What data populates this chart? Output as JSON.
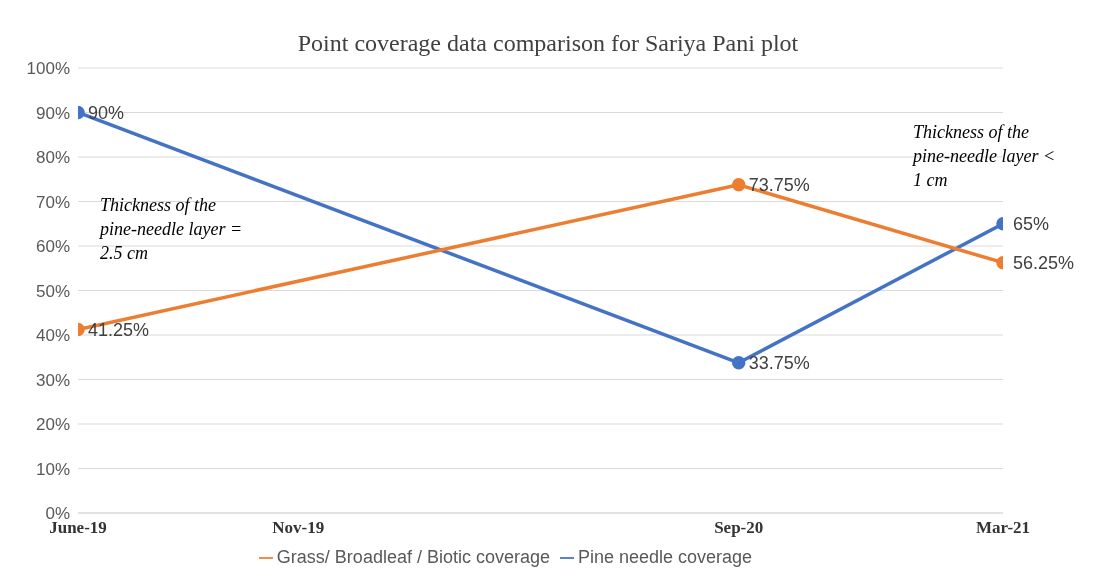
{
  "chart_data": {
    "type": "line",
    "title": "Point coverage data comparison for Sariya Pani plot",
    "x": [
      "2019-06",
      "2020-09",
      "2021-03"
    ],
    "xlim": [
      "2019-06",
      "2021-03"
    ],
    "xticks": [
      {
        "value": "2019-06",
        "label": "June-19"
      },
      {
        "value": "2019-11",
        "label": "Nov-19"
      },
      {
        "value": "2020-09",
        "label": "Sep-20"
      },
      {
        "value": "2021-03",
        "label": "Mar-21"
      }
    ],
    "ylim": [
      0,
      100
    ],
    "yticks": [
      {
        "value": 0,
        "label": "0%"
      },
      {
        "value": 10,
        "label": "10%"
      },
      {
        "value": 20,
        "label": "20%"
      },
      {
        "value": 30,
        "label": "30%"
      },
      {
        "value": 40,
        "label": "40%"
      },
      {
        "value": 50,
        "label": "50%"
      },
      {
        "value": 60,
        "label": "60%"
      },
      {
        "value": 70,
        "label": "70%"
      },
      {
        "value": 80,
        "label": "80%"
      },
      {
        "value": 90,
        "label": "90%"
      },
      {
        "value": 100,
        "label": "100%"
      }
    ],
    "series": [
      {
        "name": "Pine needle coverage",
        "color": "#4472c4",
        "values": [
          90,
          33.75,
          65
        ],
        "value_labels": [
          "90%",
          "33.75%",
          "65%"
        ]
      },
      {
        "name": "Grass/ Broadleaf / Biotic coverage",
        "color": "#ed7d31",
        "values": [
          41.25,
          73.75,
          56.25
        ],
        "value_labels": [
          "41.25%",
          "73.75%",
          "56.25%"
        ]
      }
    ],
    "annotations": [
      "Thickness of the pine-needle layer   = 2.5 cm",
      "Thickness of the pine-needle layer < 1 cm"
    ],
    "grid": "y",
    "legend": "bottom",
    "marker": "circle",
    "line_style": "solid"
  }
}
